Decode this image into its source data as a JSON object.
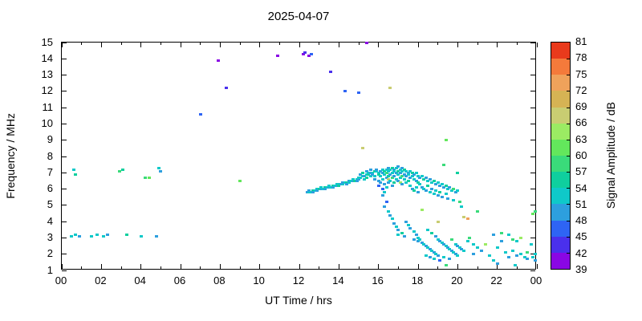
{
  "chart_data": {
    "type": "scatter",
    "title": "2025-04-07",
    "xlabel": "UT Time / hrs",
    "ylabel": "Frequency / MHz",
    "colorbar_label": "Signal Amplitude / dB",
    "xlim": [
      0,
      24
    ],
    "ylim": [
      1,
      15
    ],
    "grid": false,
    "x_major_ticks": [
      0,
      2,
      4,
      6,
      8,
      10,
      12,
      14,
      16,
      18,
      20,
      22,
      24
    ],
    "x_tick_labels": [
      "00",
      "02",
      "04",
      "06",
      "08",
      "10",
      "12",
      "14",
      "16",
      "18",
      "20",
      "22",
      "00"
    ],
    "x_minor_ticks": [
      1,
      3,
      5,
      7,
      9,
      11,
      13,
      15,
      17,
      19,
      21,
      23
    ],
    "y_ticks": [
      1,
      2,
      3,
      4,
      5,
      6,
      7,
      8,
      9,
      10,
      11,
      12,
      13,
      14,
      15
    ],
    "y_tick_labels": [
      "1",
      "2",
      "3",
      "4",
      "5",
      "6",
      "7",
      "8",
      "9",
      "10",
      "11",
      "12",
      "13",
      "14",
      "15"
    ],
    "colorbar": {
      "min": 39,
      "max": 81,
      "step": 3,
      "tick_labels": [
        "39",
        "42",
        "45",
        "48",
        "51",
        "54",
        "57",
        "60",
        "63",
        "66",
        "69",
        "72",
        "75",
        "78",
        "81"
      ],
      "band_colors": [
        "#8a06e4",
        "#4a30ec",
        "#2e64f4",
        "#2d9fde",
        "#0fc9c9",
        "#0fcf9e",
        "#3adb7a",
        "#63e75c",
        "#9beb63",
        "#c9cd72",
        "#d6b354",
        "#efa25b",
        "#f47a3b",
        "#e93a1c"
      ]
    },
    "points": [
      [
        0.5,
        3.1,
        51
      ],
      [
        0.7,
        3.2,
        51
      ],
      [
        0.9,
        3.1,
        48
      ],
      [
        1.5,
        3.1,
        51
      ],
      [
        1.8,
        3.2,
        51
      ],
      [
        2.1,
        3.1,
        51
      ],
      [
        2.3,
        3.2,
        48
      ],
      [
        3.3,
        3.2,
        54
      ],
      [
        4.0,
        3.1,
        51
      ],
      [
        4.8,
        3.1,
        48
      ],
      [
        0.6,
        7.2,
        51
      ],
      [
        0.7,
        6.9,
        54
      ],
      [
        2.9,
        7.1,
        57
      ],
      [
        3.1,
        7.2,
        54
      ],
      [
        4.2,
        6.7,
        57
      ],
      [
        4.4,
        6.7,
        60
      ],
      [
        4.9,
        7.3,
        51
      ],
      [
        5.0,
        7.1,
        48
      ],
      [
        7.0,
        10.6,
        45
      ],
      [
        7.9,
        13.9,
        39
      ],
      [
        8.3,
        12.2,
        42
      ],
      [
        9.0,
        6.5,
        60
      ],
      [
        10.9,
        14.2,
        39
      ],
      [
        12.2,
        14.3,
        39
      ],
      [
        12.3,
        14.4,
        42
      ],
      [
        12.5,
        14.2,
        39
      ],
      [
        12.6,
        14.3,
        45
      ],
      [
        13.6,
        13.2,
        42
      ],
      [
        14.3,
        12.0,
        45
      ],
      [
        15.0,
        11.9,
        45
      ],
      [
        15.4,
        15.0,
        39
      ],
      [
        15.2,
        8.5,
        66
      ],
      [
        16.6,
        12.2,
        66
      ],
      [
        19.4,
        9.0,
        60
      ],
      [
        12.4,
        5.8,
        48
      ],
      [
        12.5,
        5.8,
        51
      ],
      [
        12.5,
        5.9,
        48
      ],
      [
        12.6,
        5.8,
        51
      ],
      [
        12.7,
        5.9,
        54
      ],
      [
        12.7,
        5.8,
        48
      ],
      [
        12.8,
        5.9,
        51
      ],
      [
        12.9,
        6.0,
        51
      ],
      [
        12.9,
        5.9,
        48
      ],
      [
        13.0,
        6.0,
        54
      ],
      [
        13.1,
        6.0,
        48
      ],
      [
        13.1,
        6.1,
        51
      ],
      [
        13.2,
        6.0,
        51
      ],
      [
        13.3,
        6.1,
        54
      ],
      [
        13.3,
        6.0,
        48
      ],
      [
        13.4,
        6.1,
        51
      ],
      [
        13.5,
        6.1,
        48
      ],
      [
        13.5,
        6.2,
        51
      ],
      [
        13.6,
        6.1,
        51
      ],
      [
        13.7,
        6.2,
        54
      ],
      [
        13.7,
        6.1,
        48
      ],
      [
        13.8,
        6.2,
        51
      ],
      [
        13.9,
        6.2,
        48
      ],
      [
        13.9,
        6.3,
        51
      ],
      [
        14.0,
        6.3,
        51
      ],
      [
        14.0,
        6.2,
        54
      ],
      [
        14.1,
        6.3,
        48
      ],
      [
        14.2,
        6.3,
        51
      ],
      [
        14.2,
        6.4,
        48
      ],
      [
        14.3,
        6.4,
        51
      ],
      [
        14.4,
        6.4,
        54
      ],
      [
        14.4,
        6.3,
        48
      ],
      [
        14.5,
        6.4,
        51
      ],
      [
        14.5,
        6.5,
        48
      ],
      [
        14.6,
        6.5,
        51
      ],
      [
        14.7,
        6.5,
        48
      ],
      [
        14.7,
        6.6,
        51
      ],
      [
        14.8,
        6.5,
        54
      ],
      [
        14.9,
        6.6,
        51
      ],
      [
        14.9,
        6.5,
        48
      ],
      [
        15.0,
        6.6,
        48
      ],
      [
        15.0,
        6.7,
        51
      ],
      [
        15.1,
        6.7,
        51
      ],
      [
        15.1,
        6.9,
        48
      ],
      [
        15.2,
        6.8,
        51
      ],
      [
        15.2,
        7.0,
        54
      ],
      [
        15.3,
        6.8,
        48
      ],
      [
        15.3,
        6.6,
        51
      ],
      [
        15.4,
        6.9,
        51
      ],
      [
        15.4,
        7.1,
        48
      ],
      [
        15.4,
        6.7,
        54
      ],
      [
        15.5,
        6.9,
        54
      ],
      [
        15.5,
        7.0,
        51
      ],
      [
        15.6,
        7.0,
        48
      ],
      [
        15.6,
        6.8,
        51
      ],
      [
        15.6,
        7.2,
        48
      ],
      [
        15.7,
        7.0,
        51
      ],
      [
        15.7,
        6.9,
        48
      ],
      [
        15.8,
        7.1,
        54
      ],
      [
        15.8,
        6.8,
        51
      ],
      [
        15.8,
        6.6,
        48
      ],
      [
        15.9,
        7.1,
        51
      ],
      [
        15.9,
        7.2,
        48
      ],
      [
        16.0,
        7.0,
        51
      ],
      [
        16.0,
        6.9,
        54
      ],
      [
        16.0,
        6.5,
        48
      ],
      [
        16.0,
        6.2,
        45
      ],
      [
        16.1,
        7.1,
        48
      ],
      [
        16.1,
        6.8,
        51
      ],
      [
        16.1,
        6.4,
        48
      ],
      [
        16.2,
        7.2,
        51
      ],
      [
        16.2,
        7.0,
        48
      ],
      [
        16.2,
        6.6,
        51
      ],
      [
        16.2,
        6.0,
        45
      ],
      [
        16.2,
        5.6,
        48
      ],
      [
        16.3,
        7.1,
        54
      ],
      [
        16.3,
        6.9,
        51
      ],
      [
        16.3,
        6.3,
        48
      ],
      [
        16.3,
        5.8,
        51
      ],
      [
        16.3,
        4.9,
        48
      ],
      [
        16.4,
        7.2,
        51
      ],
      [
        16.4,
        7.0,
        57
      ],
      [
        16.4,
        6.7,
        48
      ],
      [
        16.4,
        6.1,
        51
      ],
      [
        16.4,
        5.2,
        45
      ],
      [
        16.5,
        7.3,
        48
      ],
      [
        16.5,
        7.1,
        51
      ],
      [
        16.5,
        6.8,
        54
      ],
      [
        16.5,
        6.6,
        66
      ],
      [
        16.5,
        6.4,
        48
      ],
      [
        16.5,
        4.6,
        51
      ],
      [
        16.6,
        7.2,
        51
      ],
      [
        16.6,
        6.9,
        48
      ],
      [
        16.6,
        6.5,
        51
      ],
      [
        16.6,
        4.4,
        48
      ],
      [
        16.7,
        7.3,
        54
      ],
      [
        16.7,
        7.0,
        51
      ],
      [
        16.7,
        6.7,
        57
      ],
      [
        16.7,
        6.2,
        48
      ],
      [
        16.7,
        4.2,
        51
      ],
      [
        16.8,
        7.2,
        48
      ],
      [
        16.8,
        7.1,
        51
      ],
      [
        16.8,
        6.8,
        48
      ],
      [
        16.8,
        6.4,
        54
      ],
      [
        16.8,
        3.9,
        48
      ],
      [
        16.9,
        7.3,
        51
      ],
      [
        16.9,
        7.0,
        48
      ],
      [
        16.9,
        6.6,
        51
      ],
      [
        16.9,
        3.7,
        51
      ],
      [
        17.0,
        7.4,
        48
      ],
      [
        17.0,
        7.1,
        54
      ],
      [
        17.0,
        6.9,
        51
      ],
      [
        17.0,
        6.5,
        48
      ],
      [
        17.0,
        3.5,
        48
      ],
      [
        17.0,
        3.2,
        51
      ],
      [
        17.1,
        7.2,
        51
      ],
      [
        17.1,
        7.0,
        48
      ],
      [
        17.1,
        6.7,
        51
      ],
      [
        17.1,
        6.4,
        63
      ],
      [
        17.2,
        7.3,
        48
      ],
      [
        17.2,
        7.1,
        51
      ],
      [
        17.2,
        6.8,
        57
      ],
      [
        17.2,
        6.3,
        48
      ],
      [
        17.2,
        3.3,
        54
      ],
      [
        17.3,
        7.2,
        54
      ],
      [
        17.3,
        6.9,
        48
      ],
      [
        17.3,
        6.6,
        51
      ],
      [
        17.3,
        3.1,
        48
      ],
      [
        17.4,
        7.1,
        51
      ],
      [
        17.4,
        6.8,
        48
      ],
      [
        17.4,
        6.4,
        51
      ],
      [
        17.4,
        4.0,
        48
      ],
      [
        17.5,
        7.0,
        48
      ],
      [
        17.5,
        6.9,
        51
      ],
      [
        17.5,
        6.5,
        54
      ],
      [
        17.5,
        3.8,
        51
      ],
      [
        17.6,
        7.1,
        51
      ],
      [
        17.6,
        6.7,
        48
      ],
      [
        17.6,
        6.2,
        51
      ],
      [
        17.6,
        3.6,
        48
      ],
      [
        17.7,
        7.0,
        54
      ],
      [
        17.7,
        6.8,
        51
      ],
      [
        17.7,
        6.0,
        48
      ],
      [
        17.8,
        6.9,
        48
      ],
      [
        17.8,
        6.6,
        51
      ],
      [
        17.8,
        5.9,
        54
      ],
      [
        17.8,
        3.4,
        51
      ],
      [
        17.8,
        2.9,
        48
      ],
      [
        17.9,
        7.0,
        51
      ],
      [
        17.9,
        6.5,
        48
      ],
      [
        17.9,
        6.1,
        51
      ],
      [
        17.9,
        3.2,
        48
      ],
      [
        18.0,
        6.8,
        51
      ],
      [
        18.0,
        6.4,
        54
      ],
      [
        18.0,
        5.8,
        48
      ],
      [
        18.0,
        3.0,
        51
      ],
      [
        18.0,
        2.8,
        48
      ],
      [
        18.1,
        6.7,
        48
      ],
      [
        18.1,
        6.3,
        51
      ],
      [
        18.1,
        2.9,
        51
      ],
      [
        18.2,
        6.8,
        51
      ],
      [
        18.2,
        6.1,
        48
      ],
      [
        18.2,
        4.7,
        63
      ],
      [
        18.2,
        2.7,
        48
      ],
      [
        18.3,
        6.6,
        54
      ],
      [
        18.3,
        6.0,
        51
      ],
      [
        18.3,
        2.6,
        51
      ],
      [
        18.4,
        6.7,
        48
      ],
      [
        18.4,
        5.9,
        48
      ],
      [
        18.4,
        2.5,
        48
      ],
      [
        18.4,
        1.9,
        51
      ],
      [
        18.5,
        6.5,
        51
      ],
      [
        18.5,
        6.2,
        54
      ],
      [
        18.5,
        3.5,
        51
      ],
      [
        18.5,
        2.4,
        51
      ],
      [
        18.6,
        6.6,
        48
      ],
      [
        18.6,
        5.8,
        51
      ],
      [
        18.6,
        2.3,
        48
      ],
      [
        18.6,
        1.8,
        48
      ],
      [
        18.7,
        6.4,
        51
      ],
      [
        18.7,
        6.0,
        48
      ],
      [
        18.7,
        3.3,
        54
      ],
      [
        18.7,
        2.2,
        51
      ],
      [
        18.8,
        6.5,
        54
      ],
      [
        18.8,
        5.7,
        51
      ],
      [
        18.8,
        2.1,
        48
      ],
      [
        18.8,
        1.7,
        51
      ],
      [
        18.9,
        6.3,
        48
      ],
      [
        18.9,
        5.9,
        51
      ],
      [
        18.9,
        3.1,
        48
      ],
      [
        18.9,
        2.0,
        51
      ],
      [
        19.0,
        6.4,
        51
      ],
      [
        19.0,
        5.6,
        48
      ],
      [
        19.0,
        4.0,
        66
      ],
      [
        19.0,
        2.9,
        51
      ],
      [
        19.0,
        1.9,
        48
      ],
      [
        19.1,
        6.2,
        48
      ],
      [
        19.1,
        5.8,
        54
      ],
      [
        19.1,
        2.8,
        48
      ],
      [
        19.1,
        1.6,
        45
      ],
      [
        19.2,
        6.3,
        51
      ],
      [
        19.2,
        5.5,
        48
      ],
      [
        19.2,
        2.7,
        51
      ],
      [
        19.3,
        7.5,
        57
      ],
      [
        19.3,
        6.1,
        48
      ],
      [
        19.3,
        2.6,
        48
      ],
      [
        19.3,
        1.8,
        51
      ],
      [
        19.4,
        6.2,
        54
      ],
      [
        19.4,
        5.7,
        51
      ],
      [
        19.4,
        2.5,
        51
      ],
      [
        19.4,
        1.3,
        57
      ],
      [
        19.5,
        6.0,
        51
      ],
      [
        19.5,
        5.4,
        48
      ],
      [
        19.5,
        2.4,
        48
      ],
      [
        19.6,
        6.1,
        48
      ],
      [
        19.6,
        2.3,
        51
      ],
      [
        19.6,
        1.7,
        48
      ],
      [
        19.7,
        5.9,
        51
      ],
      [
        19.7,
        2.9,
        57
      ],
      [
        19.7,
        2.2,
        48
      ],
      [
        19.8,
        6.0,
        57
      ],
      [
        19.8,
        5.3,
        51
      ],
      [
        19.8,
        2.1,
        51
      ],
      [
        19.9,
        5.8,
        48
      ],
      [
        19.9,
        2.6,
        51
      ],
      [
        19.9,
        2.0,
        48
      ],
      [
        20.0,
        7.0,
        54
      ],
      [
        20.0,
        5.9,
        51
      ],
      [
        20.0,
        2.5,
        48
      ],
      [
        20.0,
        1.9,
        51
      ],
      [
        20.1,
        5.2,
        57
      ],
      [
        20.1,
        2.4,
        51
      ],
      [
        20.2,
        4.9,
        51
      ],
      [
        20.2,
        2.3,
        48
      ],
      [
        20.3,
        4.3,
        66
      ],
      [
        20.3,
        2.2,
        51
      ],
      [
        20.5,
        4.2,
        72
      ],
      [
        20.5,
        2.8,
        51
      ],
      [
        20.6,
        3.0,
        57
      ],
      [
        20.8,
        2.6,
        51
      ],
      [
        20.8,
        2.0,
        48
      ],
      [
        21.0,
        4.6,
        57
      ],
      [
        21.0,
        2.4,
        51
      ],
      [
        21.2,
        2.2,
        48
      ],
      [
        21.4,
        2.6,
        63
      ],
      [
        21.6,
        1.9,
        51
      ],
      [
        21.8,
        3.2,
        48
      ],
      [
        21.8,
        1.6,
        51
      ],
      [
        22.0,
        2.4,
        51
      ],
      [
        22.0,
        1.4,
        48
      ],
      [
        22.2,
        3.3,
        57
      ],
      [
        22.2,
        2.8,
        48
      ],
      [
        22.4,
        2.1,
        51
      ],
      [
        22.6,
        3.2,
        51
      ],
      [
        22.6,
        1.8,
        48
      ],
      [
        22.8,
        2.9,
        57
      ],
      [
        22.8,
        2.2,
        51
      ],
      [
        22.9,
        1.3,
        51
      ],
      [
        23.0,
        2.8,
        51
      ],
      [
        23.0,
        1.9,
        48
      ],
      [
        23.2,
        3.0,
        63
      ],
      [
        23.2,
        2.0,
        51
      ],
      [
        23.4,
        1.8,
        51
      ],
      [
        23.5,
        2.1,
        57
      ],
      [
        23.5,
        1.7,
        48
      ],
      [
        23.7,
        2.6,
        51
      ],
      [
        23.8,
        4.5,
        60
      ],
      [
        23.8,
        1.8,
        51
      ],
      [
        23.9,
        4.6,
        57
      ],
      [
        23.9,
        2.0,
        51
      ],
      [
        23.9,
        1.6,
        48
      ]
    ]
  }
}
